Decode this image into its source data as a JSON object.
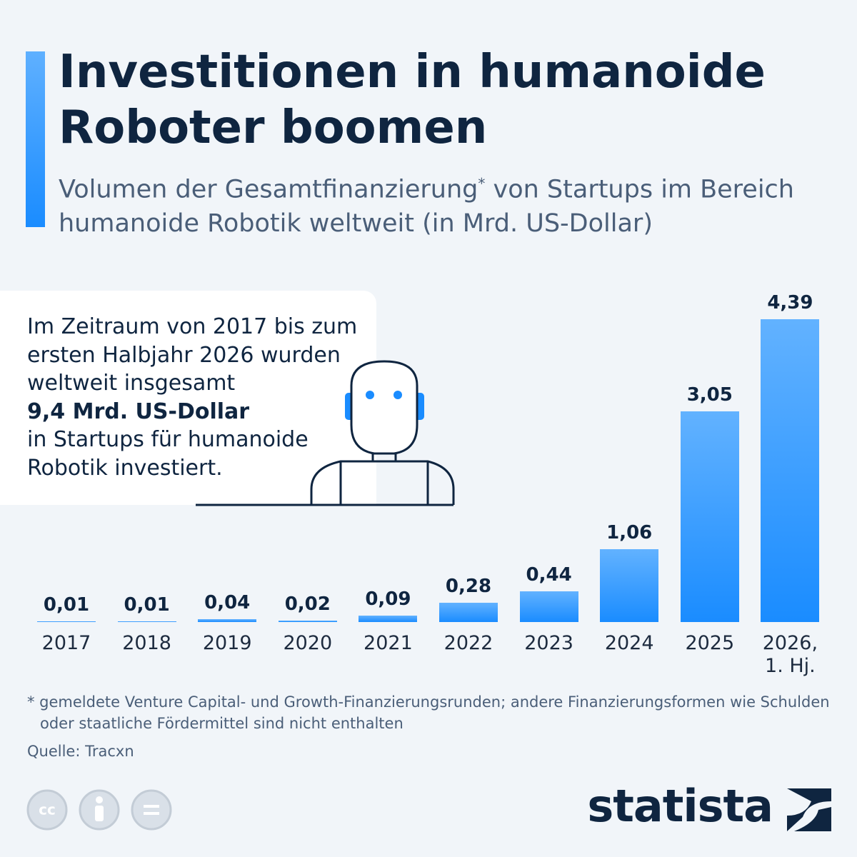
{
  "chart_data": {
    "type": "bar",
    "title": "Investitionen in humanoide Roboter boomen",
    "subtitle": [
      "Volumen der Gesamtfinanzierung",
      "*",
      " von Startups im Bereich humanoide Robotik weltweit (in Mrd. US-Dollar)"
    ],
    "categories": [
      "2017",
      "2018",
      "2019",
      "2020",
      "2021",
      "2022",
      "2023",
      "2024",
      "2025",
      "2026, 1. Hj."
    ],
    "values": [
      0.01,
      0.01,
      0.04,
      0.02,
      0.09,
      0.28,
      0.44,
      1.06,
      3.05,
      4.39
    ],
    "value_labels": [
      "0,01",
      "0,01",
      "0,04",
      "0,02",
      "0,09",
      "0,28",
      "0,44",
      "1,06",
      "3,05",
      "4,39"
    ],
    "color": "#1a8cff",
    "annotation": {
      "before": "Im Zeitraum von 2017 bis zum ersten Halbjahr 2026 wurden weltweit insgesamt",
      "highlight": "9,4 Mrd. US-Dollar",
      "after": "in Startups für humanoide Robotik investiert."
    },
    "footnote": "* gemeldete Venture Capital- und Growth-Finanzierungsrunden; andere Finanzierungsformen wie Schulden oder staatliche Fördermittel sind nicht enthalten",
    "source": "Quelle: Tracxn",
    "license_icon": "cc",
    "brand": "statista"
  }
}
